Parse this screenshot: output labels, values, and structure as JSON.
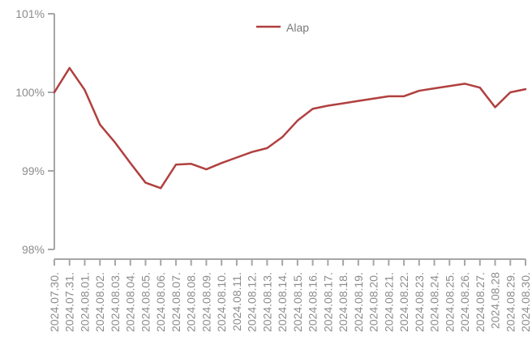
{
  "chart_data": {
    "type": "line",
    "title": "",
    "xlabel": "",
    "ylabel": "",
    "ylim": [
      98,
      101
    ],
    "y_ticks": [
      98,
      99,
      100,
      101
    ],
    "y_tick_labels": [
      "98%",
      "99%",
      "100%",
      "101%"
    ],
    "grid": false,
    "legend_position": "top-center",
    "categories": [
      "2024.07.30.",
      "2024.07.31.",
      "2024.08.01.",
      "2024.08.02.",
      "2024.08.03.",
      "2024.08.04.",
      "2024.08.05.",
      "2024.08.06.",
      "2024.08.07.",
      "2024.08.08.",
      "2024.08.09.",
      "2024.08.10.",
      "2024.08.11.",
      "2024.08.12.",
      "2024.08.13.",
      "2024.08.14.",
      "2024.08.15.",
      "2024.08.16.",
      "2024.08.17.",
      "2024.08.18.",
      "2024.08.19.",
      "2024.08.20.",
      "2024.08.21.",
      "2024.08.22.",
      "2024.08.23.",
      "2024.08.24.",
      "2024.08.25.",
      "2024.08.26.",
      "2024.08.27.",
      "2024.08.28",
      "2024.08.29.",
      "2024.08.30."
    ],
    "series": [
      {
        "name": "Alap",
        "color": "#b0403f",
        "values": [
          100.0,
          100.31,
          100.03,
          99.59,
          99.36,
          99.1,
          98.85,
          98.78,
          99.08,
          99.09,
          99.02,
          99.1,
          99.17,
          99.24,
          99.29,
          99.43,
          99.64,
          99.79,
          99.83,
          99.86,
          99.89,
          99.92,
          99.95,
          99.95,
          100.02,
          100.05,
          100.08,
          100.11,
          100.06,
          99.81,
          100.0,
          100.04
        ]
      }
    ]
  }
}
